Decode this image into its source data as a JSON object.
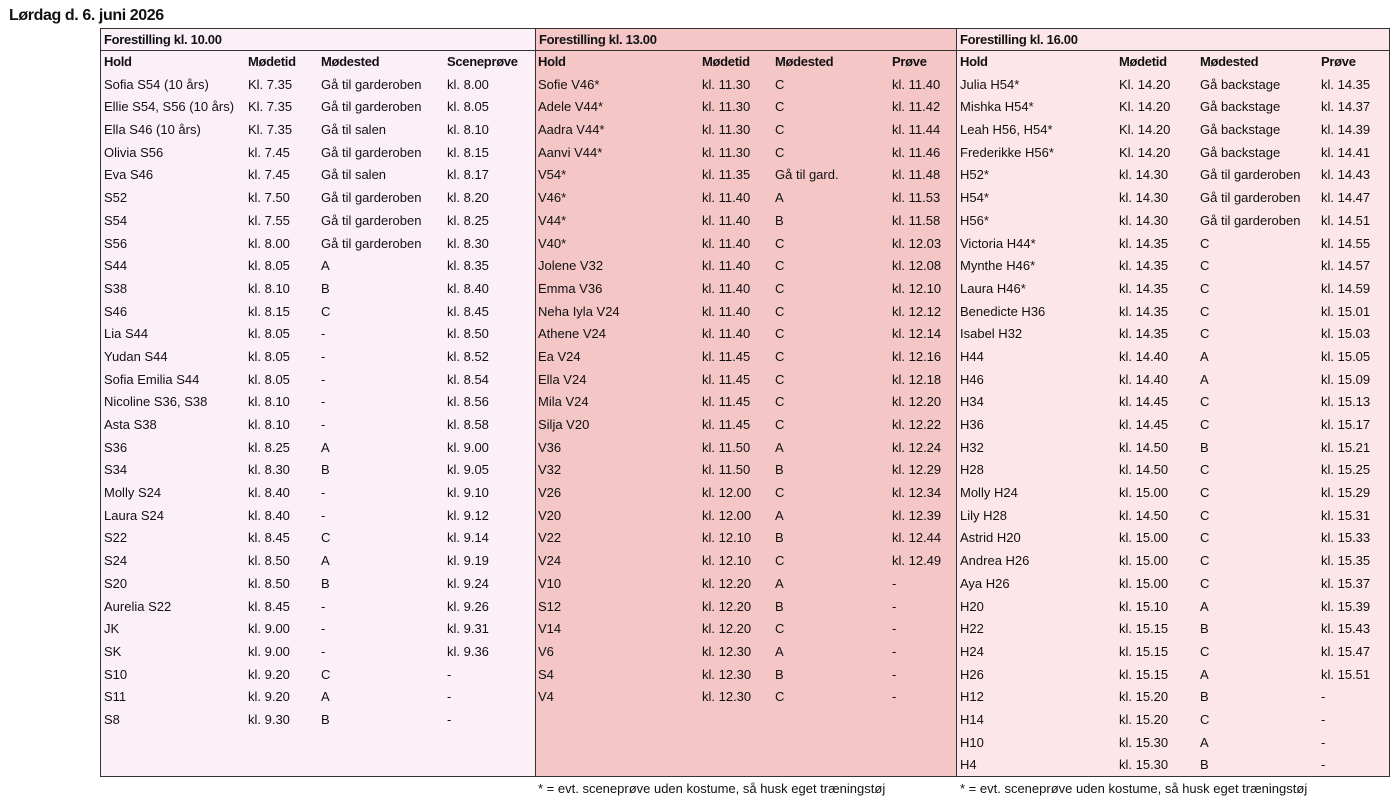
{
  "page": {
    "title": "Lørdag d. 6. juni 2026"
  },
  "blocks": [
    {
      "title": "Forestilling kl. 10.00",
      "headers": [
        "Hold",
        "Mødetid",
        "Mødested",
        "Sceneprøve"
      ],
      "rows": [
        [
          "Sofia S54 (10 års)",
          "Kl. 7.35",
          "Gå til garderoben",
          "kl. 8.00"
        ],
        [
          "Ellie S54, S56 (10 års)",
          "Kl. 7.35",
          "Gå til garderoben",
          "kl. 8.05"
        ],
        [
          "Ella S46 (10 års)",
          "Kl. 7.35",
          "Gå til salen",
          "kl. 8.10"
        ],
        [
          "Olivia S56",
          "kl. 7.45",
          "Gå til garderoben",
          "kl. 8.15"
        ],
        [
          "Eva S46",
          "kl. 7.45",
          "Gå til salen",
          "kl. 8.17"
        ],
        [
          "S52",
          "kl. 7.50",
          "Gå til garderoben",
          "kl. 8.20"
        ],
        [
          "S54",
          "kl. 7.55",
          "Gå til garderoben",
          "kl. 8.25"
        ],
        [
          "S56",
          "kl. 8.00",
          "Gå til garderoben",
          "kl. 8.30"
        ],
        [
          "S44",
          "kl. 8.05",
          "A",
          "kl. 8.35"
        ],
        [
          "S38",
          "kl. 8.10",
          "B",
          "kl. 8.40"
        ],
        [
          "S46",
          "kl. 8.15",
          "C",
          "kl. 8.45"
        ],
        [
          "Lia S44",
          "kl. 8.05",
          "-",
          "kl. 8.50"
        ],
        [
          "Yudan S44",
          "kl. 8.05",
          "-",
          "kl. 8.52"
        ],
        [
          "Sofia Emilia S44",
          "kl. 8.05",
          "-",
          "kl. 8.54"
        ],
        [
          "Nicoline S36, S38",
          "kl. 8.10",
          "-",
          "kl. 8.56"
        ],
        [
          "Asta S38",
          "kl. 8.10",
          "-",
          "kl. 8.58"
        ],
        [
          "S36",
          "kl. 8.25",
          "A",
          "kl. 9.00"
        ],
        [
          "S34",
          "kl. 8.30",
          "B",
          "kl. 9.05"
        ],
        [
          "Molly S24",
          "kl. 8.40",
          "-",
          "kl. 9.10"
        ],
        [
          "Laura S24",
          "kl. 8.40",
          "-",
          "kl. 9.12"
        ],
        [
          "S22",
          "kl. 8.45",
          "C",
          "kl. 9.14"
        ],
        [
          "S24",
          "kl. 8.50",
          "A",
          "kl. 9.19"
        ],
        [
          "S20",
          "kl. 8.50",
          "B",
          "kl. 9.24"
        ],
        [
          "Aurelia S22",
          "kl. 8.45",
          "-",
          "kl. 9.26"
        ],
        [
          "JK",
          "kl. 9.00",
          "-",
          "kl. 9.31"
        ],
        [
          "SK",
          "kl. 9.00",
          "-",
          "kl. 9.36"
        ],
        [
          "S10",
          "kl. 9.20",
          "C",
          "-"
        ],
        [
          "S11",
          "kl. 9.20",
          "A",
          "-"
        ],
        [
          "S8",
          "kl. 9.30",
          "B",
          "-"
        ]
      ]
    },
    {
      "title": "Forestilling kl. 13.00",
      "headers": [
        "Hold",
        "Mødetid",
        "Mødested",
        "Prøve"
      ],
      "rows": [
        [
          "Sofie V46*",
          "kl. 11.30",
          "C",
          "kl. 11.40"
        ],
        [
          "Adele V44*",
          "kl. 11.30",
          "C",
          "kl. 11.42"
        ],
        [
          "Aadra V44*",
          "kl. 11.30",
          "C",
          "kl. 11.44"
        ],
        [
          "Aanvi V44*",
          "kl. 11.30",
          "C",
          "kl. 11.46"
        ],
        [
          "V54*",
          "kl. 11.35",
          "Gå til gard.",
          "kl. 11.48"
        ],
        [
          "V46*",
          "kl. 11.40",
          "A",
          "kl. 11.53"
        ],
        [
          "V44*",
          "kl. 11.40",
          "B",
          "kl. 11.58"
        ],
        [
          "V40*",
          "kl. 11.40",
          "C",
          "kl. 12.03"
        ],
        [
          "Jolene V32",
          "kl. 11.40",
          "C",
          "kl. 12.08"
        ],
        [
          "Emma V36",
          "kl. 11.40",
          "C",
          "kl. 12.10"
        ],
        [
          "Neha Iyla V24",
          "kl. 11.40",
          "C",
          "kl. 12.12"
        ],
        [
          "Athene V24",
          "kl. 11.40",
          "C",
          "kl. 12.14"
        ],
        [
          "Ea V24",
          "kl. 11.45",
          "C",
          "kl. 12.16"
        ],
        [
          "Ella V24",
          "kl. 11.45",
          "C",
          "kl. 12.18"
        ],
        [
          "Mila V24",
          "kl. 11.45",
          "C",
          "kl. 12.20"
        ],
        [
          "Silja V20",
          "kl. 11.45",
          "C",
          "kl. 12.22"
        ],
        [
          "V36",
          "kl. 11.50",
          "A",
          "kl. 12.24"
        ],
        [
          "V32",
          "kl. 11.50",
          "B",
          "kl. 12.29"
        ],
        [
          "V26",
          "kl. 12.00",
          "C",
          "kl. 12.34"
        ],
        [
          "V20",
          "kl. 12.00",
          "A",
          "kl. 12.39"
        ],
        [
          "V22",
          "kl. 12.10",
          "B",
          "kl. 12.44"
        ],
        [
          "V24",
          "kl. 12.10",
          "C",
          "kl. 12.49"
        ],
        [
          "V10",
          "kl. 12.20",
          "A",
          "-"
        ],
        [
          "S12",
          "kl. 12.20",
          "B",
          "-"
        ],
        [
          "V14",
          "kl. 12.20",
          "C",
          "-"
        ],
        [
          "V6",
          "kl. 12.30",
          "A",
          "-"
        ],
        [
          "S4",
          "kl. 12.30",
          "B",
          "-"
        ],
        [
          "V4",
          "kl. 12.30",
          "C",
          "-"
        ]
      ]
    },
    {
      "title": "Forestilling kl. 16.00",
      "headers": [
        "Hold",
        "Mødetid",
        "Mødested",
        "Prøve"
      ],
      "rows": [
        [
          "Julia H54*",
          "Kl. 14.20",
          "Gå backstage",
          "kl. 14.35"
        ],
        [
          "Mishka H54*",
          "Kl. 14.20",
          "Gå backstage",
          "kl. 14.37"
        ],
        [
          "Leah H56, H54*",
          "Kl. 14.20",
          "Gå backstage",
          "kl. 14.39"
        ],
        [
          "Frederikke H56*",
          "Kl. 14.20",
          "Gå backstage",
          "kl. 14.41"
        ],
        [
          "H52*",
          "kl. 14.30",
          "Gå til garderoben",
          "kl. 14.43"
        ],
        [
          "H54*",
          "kl. 14.30",
          "Gå til garderoben",
          "kl. 14.47"
        ],
        [
          "H56*",
          "kl. 14.30",
          "Gå til garderoben",
          "kl. 14.51"
        ],
        [
          "Victoria H44*",
          "kl. 14.35",
          "C",
          "kl. 14.55"
        ],
        [
          "Mynthe H46*",
          "kl. 14.35",
          "C",
          "kl. 14.57"
        ],
        [
          "Laura H46*",
          "kl. 14.35",
          "C",
          "kl. 14.59"
        ],
        [
          "Benedicte H36",
          "kl. 14.35",
          "C",
          "kl. 15.01"
        ],
        [
          "Isabel H32",
          "kl. 14.35",
          "C",
          "kl. 15.03"
        ],
        [
          "H44",
          "kl. 14.40",
          "A",
          "kl. 15.05"
        ],
        [
          "H46",
          "kl. 14.40",
          "A",
          "kl. 15.09"
        ],
        [
          "H34",
          "kl. 14.45",
          "C",
          "kl. 15.13"
        ],
        [
          "H36",
          "kl. 14.45",
          "C",
          "kl. 15.17"
        ],
        [
          "H32",
          "kl. 14.50",
          "B",
          "kl. 15.21"
        ],
        [
          "H28",
          "kl. 14.50",
          "C",
          "kl. 15.25"
        ],
        [
          "Molly H24",
          "kl. 15.00",
          "C",
          "kl. 15.29"
        ],
        [
          "Lily H28",
          "kl. 14.50",
          "C",
          "kl. 15.31"
        ],
        [
          "Astrid H20",
          "kl. 15.00",
          "C",
          "kl. 15.33"
        ],
        [
          "Andrea H26",
          "kl. 15.00",
          "C",
          "kl. 15.35"
        ],
        [
          "Aya H26",
          "kl. 15.00",
          "C",
          "kl. 15.37"
        ],
        [
          "H20",
          "kl. 15.10",
          "A",
          "kl. 15.39"
        ],
        [
          "H22",
          "kl. 15.15",
          "B",
          "kl. 15.43"
        ],
        [
          "H24",
          "kl. 15.15",
          "C",
          "kl. 15.47"
        ],
        [
          "H26",
          "kl. 15.15",
          "A",
          "kl. 15.51"
        ],
        [
          "H12",
          "kl. 15.20",
          "B",
          "-"
        ],
        [
          "H14",
          "kl. 15.20",
          "C",
          "-"
        ],
        [
          "H10",
          "kl. 15.30",
          "A",
          "-"
        ],
        [
          "H4",
          "kl. 15.30",
          "B",
          "-"
        ]
      ]
    }
  ],
  "footnotes": [
    "* = evt. sceneprøve uden kostume, så husk eget træningstøj",
    "* = evt. sceneprøve uden kostume, så husk eget træningstøj"
  ],
  "colors": {
    "block_1_bg": "#fcf0f8",
    "block_2_bg": "#f4c6c6",
    "block_3_bg": "#fde6ea",
    "border": "#333333"
  }
}
